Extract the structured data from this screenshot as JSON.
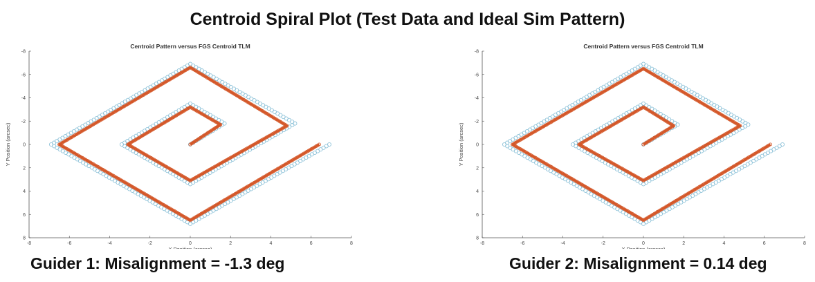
{
  "title": "Centroid Spiral Plot (Test Data and Ideal Sim Pattern)",
  "colors": {
    "ideal": "#8fc3d9",
    "test": "#d4582a",
    "axis": "#555555"
  },
  "chart_data": [
    {
      "type": "scatter",
      "title": "Centroid Pattern versus FGS Centroid TLM",
      "xlabel": "X Position (arcsec)",
      "ylabel": "Y Position (arcsec)",
      "xlim": [
        -8,
        8
      ],
      "ylim": [
        -8,
        8
      ],
      "y_reversed": true,
      "xticks": [
        "-8",
        "-6",
        "-4",
        "-2",
        "0",
        "2",
        "4",
        "6",
        "8"
      ],
      "yticks": [
        "-8",
        "-6",
        "-4",
        "-2",
        "0",
        "2",
        "4",
        "6",
        "8"
      ],
      "caption": "Guider 1:  Misalignment = -1.3 deg",
      "series": [
        {
          "role": "ideal",
          "vertices": [
            [
              0,
              0
            ],
            [
              1.7,
              -1.8
            ],
            [
              0,
              -3.5
            ],
            [
              -3.4,
              0
            ],
            [
              0,
              3.4
            ],
            [
              5.2,
              -1.8
            ],
            [
              0,
              -6.9
            ],
            [
              -6.9,
              0
            ],
            [
              0,
              6.8
            ],
            [
              6.9,
              0
            ]
          ]
        },
        {
          "role": "test",
          "vertices": [
            [
              0,
              0
            ],
            [
              1.5,
              -1.7
            ],
            [
              0,
              -3.2
            ],
            [
              -3.1,
              0
            ],
            [
              0,
              3.1
            ],
            [
              4.8,
              -1.6
            ],
            [
              0,
              -6.6
            ],
            [
              -6.5,
              0
            ],
            [
              0,
              6.5
            ],
            [
              6.4,
              0
            ]
          ]
        }
      ]
    },
    {
      "type": "scatter",
      "title": "Centroid Pattern versus FGS Centroid TLM",
      "xlabel": "X Position (arcsec)",
      "ylabel": "Y Position (arcsec)",
      "xlim": [
        -8,
        8
      ],
      "ylim": [
        -8,
        8
      ],
      "y_reversed": true,
      "xticks": [
        "-8",
        "-6",
        "-4",
        "-2",
        "0",
        "2",
        "4",
        "6",
        "8"
      ],
      "yticks": [
        "-8",
        "-6",
        "-4",
        "-2",
        "0",
        "2",
        "4",
        "6",
        "8"
      ],
      "caption": "Guider 2:  Misalignment = 0.14 deg",
      "series": [
        {
          "role": "ideal",
          "vertices": [
            [
              0,
              0
            ],
            [
              1.7,
              -1.7
            ],
            [
              0,
              -3.5
            ],
            [
              -3.5,
              0
            ],
            [
              0,
              3.4
            ],
            [
              5.2,
              -1.7
            ],
            [
              0,
              -6.9
            ],
            [
              -6.9,
              0
            ],
            [
              0,
              6.8
            ],
            [
              6.9,
              0
            ]
          ]
        },
        {
          "role": "test",
          "vertices": [
            [
              0,
              0
            ],
            [
              1.5,
              -1.6
            ],
            [
              0,
              -3.2
            ],
            [
              -3.2,
              0
            ],
            [
              0,
              3.1
            ],
            [
              4.8,
              -1.6
            ],
            [
              0,
              -6.5
            ],
            [
              -6.5,
              0
            ],
            [
              0,
              6.5
            ],
            [
              6.3,
              0
            ]
          ]
        }
      ]
    }
  ]
}
